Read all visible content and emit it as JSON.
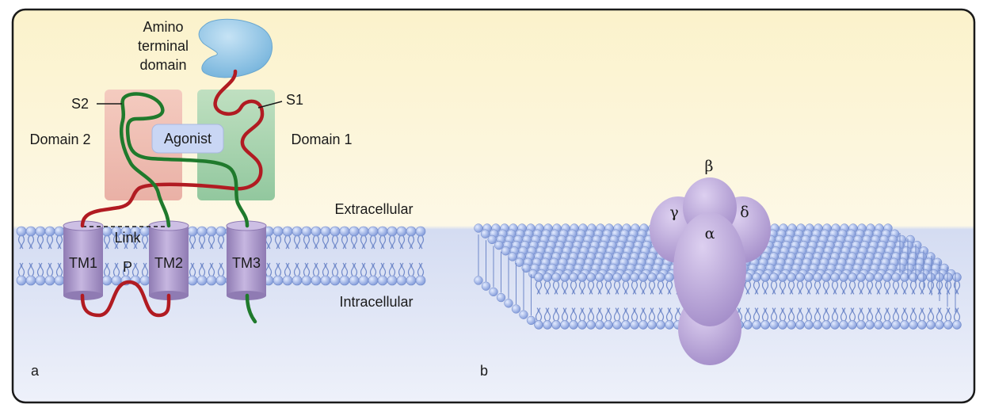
{
  "panel_a": {
    "panel_label": "a",
    "amino_terminal_domain": [
      "Amino",
      "terminal",
      "domain"
    ],
    "s1": "S1",
    "s2": "S2",
    "domain1": "Domain 1",
    "domain2": "Domain 2",
    "agonist": "Agonist",
    "extracellular": "Extracellular",
    "intracellular": "Intracellular",
    "link": "Link",
    "p": "P",
    "tm1": "TM1",
    "tm2": "TM2",
    "tm3": "TM3"
  },
  "panel_b": {
    "panel_label": "b",
    "alpha": "α",
    "beta": "β",
    "gamma": "γ",
    "delta": "δ"
  },
  "colors": {
    "extracellular_bg": "#fbf3d2",
    "intracellular_bg": "#d6def3",
    "lipid_head": "#8ea6e3",
    "red_chain": "#b11b22",
    "green_chain": "#1f7a2c",
    "domain1_fill": "#8cc79e",
    "domain2_fill": "#eeaaa2",
    "tm_fill": "#a996c6",
    "subunit_fill": "#b7a3d6",
    "amino_fill": "#8fc3e2"
  }
}
